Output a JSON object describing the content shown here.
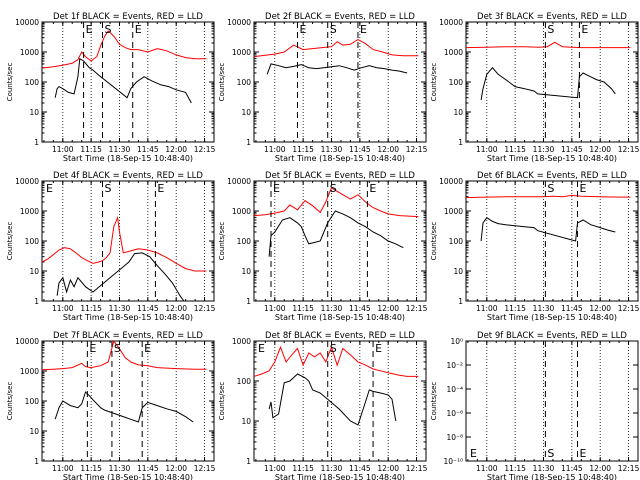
{
  "figure": {
    "x_title": "Start Time (18-Sep-15 10:48:40)",
    "y_title": "Counts/sec",
    "x_ticks": [
      "11:00",
      "11:15",
      "11:30",
      "11:45",
      "12:00",
      "12:15"
    ],
    "y_ticks_counts": [
      "1",
      "10",
      "100",
      "1000",
      "10000"
    ],
    "y_ticks_small": [
      "10⁰",
      "10⁻²",
      "10⁻⁴",
      "10⁻⁶",
      "10⁻⁸",
      "10⁻¹⁰"
    ],
    "colors": {
      "events": "#000000",
      "lld": "#ff0000",
      "axes": "#000000"
    }
  },
  "chart_data": [
    {
      "type": "line",
      "title": "Det 1f BLACK = Events, RED = LLD",
      "xlabel": "Start Time (18-Sep-15 10:48:40)",
      "ylabel": "Counts/sec",
      "ylim": [
        1,
        10000
      ],
      "yscale": "log",
      "markers": [
        {
          "label": "E",
          "x": "11:11"
        },
        {
          "label": "S",
          "x": "11:21"
        },
        {
          "label": "E",
          "x": "11:37"
        }
      ],
      "series": [
        {
          "name": "LLD",
          "color": "#ff0000",
          "x": [
            "10:49",
            "10:55",
            "11:00",
            "11:05",
            "11:08",
            "11:10",
            "11:12",
            "11:15",
            "11:18",
            "11:20",
            "11:22",
            "11:24",
            "11:27",
            "11:30",
            "11:33",
            "11:36",
            "11:40",
            "11:45",
            "11:50",
            "11:55",
            "12:00",
            "12:05",
            "12:10",
            "12:16"
          ],
          "y": [
            290,
            320,
            360,
            420,
            560,
            1000,
            700,
            500,
            700,
            1600,
            3200,
            5000,
            3400,
            1800,
            1400,
            1200,
            1200,
            1000,
            1300,
            1100,
            800,
            650,
            600,
            600
          ]
        },
        {
          "name": "Events",
          "color": "#000000",
          "x": [
            "10:56",
            "10:57",
            "10:58",
            "11:00",
            "11:03",
            "11:06",
            "11:08",
            "11:09",
            "11:11",
            "11:14",
            "11:16",
            "11:19",
            "11:34",
            "11:36",
            "11:39",
            "11:43",
            "11:47",
            "11:52",
            "11:56",
            "12:00",
            "12:05",
            "12:08"
          ],
          "y": [
            30,
            60,
            70,
            60,
            45,
            40,
            150,
            600,
            500,
            300,
            250,
            170,
            30,
            60,
            100,
            150,
            110,
            80,
            70,
            55,
            45,
            20
          ]
        }
      ]
    },
    {
      "type": "line",
      "title": "Det 2f BLACK = Events, RED = LLD",
      "xlabel": "Start Time (18-Sep-15 10:48:40)",
      "ylabel": "Counts/sec",
      "ylim": [
        1,
        10000
      ],
      "yscale": "log",
      "markers": [
        {
          "label": "E",
          "x": "11:12"
        },
        {
          "label": "S",
          "x": "11:28"
        },
        {
          "label": "E",
          "x": "11:44"
        }
      ],
      "series": [
        {
          "name": "LLD",
          "color": "#ff0000",
          "x": [
            "10:49",
            "10:55",
            "11:00",
            "11:05",
            "11:10",
            "11:15",
            "11:20",
            "11:25",
            "11:30",
            "11:33",
            "11:36",
            "11:40",
            "11:44",
            "11:48",
            "11:52",
            "11:57",
            "12:02",
            "12:08",
            "12:16"
          ],
          "y": [
            700,
            780,
            850,
            1000,
            1700,
            1200,
            1300,
            1400,
            1500,
            2200,
            1700,
            1800,
            2600,
            1900,
            1200,
            1000,
            800,
            750,
            750
          ]
        },
        {
          "name": "Events",
          "color": "#000000",
          "x": [
            "10:56",
            "10:58",
            "11:02",
            "11:06",
            "11:10",
            "11:14",
            "11:18",
            "11:22",
            "11:26",
            "11:30",
            "11:34",
            "11:38",
            "11:42",
            "11:46",
            "11:50",
            "11:54",
            "11:58",
            "12:02",
            "12:06",
            "12:10"
          ],
          "y": [
            180,
            400,
            350,
            300,
            330,
            380,
            300,
            280,
            300,
            320,
            350,
            300,
            250,
            300,
            350,
            300,
            280,
            250,
            230,
            200
          ]
        }
      ]
    },
    {
      "type": "line",
      "title": "Det 3f BLACK = Events, RED = LLD",
      "xlabel": "Start Time (18-Sep-15 10:48:40)",
      "ylabel": "Counts/sec",
      "ylim": [
        1,
        10000
      ],
      "yscale": "log",
      "markers": [
        {
          "label": "S",
          "x": "11:31"
        },
        {
          "label": "E",
          "x": "11:49"
        }
      ],
      "series": [
        {
          "name": "LLD",
          "color": "#ff0000",
          "x": [
            "10:49",
            "11:00",
            "11:10",
            "11:20",
            "11:28",
            "11:32",
            "11:36",
            "11:40",
            "11:45",
            "11:50",
            "12:00",
            "12:16"
          ],
          "y": [
            1400,
            1450,
            1500,
            1500,
            1450,
            1500,
            2100,
            1500,
            1450,
            1400,
            1400,
            1400
          ]
        },
        {
          "name": "Events",
          "color": "#000000",
          "x": [
            "10:57",
            "10:58",
            "11:00",
            "11:03",
            "11:06",
            "11:10",
            "11:15",
            "11:20",
            "11:25",
            "11:27",
            "11:48",
            "11:49",
            "11:51",
            "11:54",
            "11:58",
            "12:02",
            "12:06",
            "12:08"
          ],
          "y": [
            25,
            60,
            180,
            300,
            180,
            120,
            70,
            60,
            50,
            40,
            30,
            150,
            200,
            160,
            120,
            100,
            60,
            40
          ]
        }
      ]
    },
    {
      "type": "line",
      "title": "Det 4f BLACK = Events, RED = LLD",
      "xlabel": "Start Time (18-Sep-15 10:48:40)",
      "ylabel": "Counts/sec",
      "ylim": [
        1,
        10000
      ],
      "yscale": "log",
      "markers": [
        {
          "label": "E",
          "x": "10:49"
        },
        {
          "label": "S",
          "x": "11:21"
        },
        {
          "label": "E",
          "x": "11:49"
        }
      ],
      "series": [
        {
          "name": "LLD",
          "color": "#ff0000",
          "x": [
            "10:49",
            "10:52",
            "10:55",
            "10:58",
            "11:01",
            "11:04",
            "11:07",
            "11:10",
            "11:13",
            "11:16",
            "11:19",
            "11:21",
            "11:23",
            "11:25",
            "11:27",
            "11:29",
            "11:30",
            "11:32",
            "11:35",
            "11:40",
            "11:45",
            "11:50",
            "11:55",
            "12:00",
            "12:05",
            "12:10",
            "12:16"
          ],
          "y": [
            20,
            25,
            35,
            50,
            60,
            55,
            40,
            28,
            22,
            18,
            20,
            22,
            28,
            40,
            300,
            600,
            200,
            40,
            45,
            55,
            50,
            40,
            28,
            18,
            12,
            10,
            10
          ]
        },
        {
          "name": "Events",
          "color": "#000000",
          "x": [
            "10:57",
            "10:58",
            "11:00",
            "11:02",
            "11:04",
            "11:06",
            "11:08",
            "11:12",
            "11:16",
            "11:35",
            "11:38",
            "11:42",
            "11:46",
            "11:50",
            "11:54",
            "11:58",
            "12:02",
            "12:04"
          ],
          "y": [
            1.5,
            4,
            6,
            2,
            5,
            3,
            6,
            3,
            2,
            20,
            38,
            40,
            30,
            15,
            8,
            4,
            1.5,
            1
          ]
        }
      ]
    },
    {
      "type": "line",
      "title": "Det 5f BLACK = Events, RED = LLD",
      "xlabel": "Start Time (18-Sep-15 10:48:40)",
      "ylabel": "Counts/sec",
      "ylim": [
        1,
        10000
      ],
      "yscale": "log",
      "markers": [
        {
          "label": "E",
          "x": "10:58"
        },
        {
          "label": "S",
          "x": "11:28"
        },
        {
          "label": "E",
          "x": "11:49"
        }
      ],
      "series": [
        {
          "name": "LLD",
          "color": "#ff0000",
          "x": [
            "10:49",
            "10:55",
            "11:00",
            "11:05",
            "11:08",
            "11:12",
            "11:16",
            "11:20",
            "11:24",
            "11:27",
            "11:30",
            "11:33",
            "11:36",
            "11:40",
            "11:44",
            "11:48",
            "11:52",
            "11:56",
            "12:00",
            "12:06",
            "12:16"
          ],
          "y": [
            700,
            750,
            850,
            1000,
            1600,
            1100,
            2200,
            1500,
            900,
            2000,
            6000,
            4500,
            3500,
            2500,
            3500,
            2000,
            1300,
            1000,
            800,
            700,
            650
          ]
        },
        {
          "name": "Events",
          "color": "#000000",
          "x": [
            "10:57",
            "10:58",
            "11:00",
            "11:04",
            "11:08",
            "11:12",
            "11:14",
            "11:16",
            "11:18",
            "11:24",
            "11:28",
            "11:32",
            "11:36",
            "11:40",
            "11:44",
            "11:48",
            "11:52",
            "11:56",
            "12:00",
            "12:04",
            "12:08"
          ],
          "y": [
            30,
            150,
            200,
            500,
            600,
            400,
            300,
            150,
            80,
            100,
            400,
            1000,
            800,
            600,
            400,
            300,
            200,
            150,
            100,
            80,
            60
          ]
        }
      ]
    },
    {
      "type": "line",
      "title": "Det 6f BLACK = Events, RED = LLD",
      "xlabel": "Start Time (18-Sep-15 10:48:40)",
      "ylabel": "Counts/sec",
      "ylim": [
        1,
        10000
      ],
      "yscale": "log",
      "markers": [
        {
          "label": "S",
          "x": "11:31"
        },
        {
          "label": "E",
          "x": "11:48"
        }
      ],
      "series": [
        {
          "name": "LLD",
          "color": "#ff0000",
          "x": [
            "10:49",
            "11:00",
            "11:10",
            "11:20",
            "11:30",
            "11:35",
            "11:40",
            "11:45",
            "11:50",
            "12:00",
            "12:10",
            "12:16"
          ],
          "y": [
            2800,
            2900,
            3000,
            3000,
            3000,
            3100,
            3000,
            3300,
            3100,
            3000,
            2900,
            2900
          ]
        },
        {
          "name": "Events",
          "color": "#000000",
          "x": [
            "10:57",
            "10:58",
            "11:00",
            "11:03",
            "11:06",
            "11:10",
            "11:15",
            "11:20",
            "11:25",
            "11:27",
            "11:47",
            "11:48",
            "11:51",
            "11:55",
            "12:00",
            "12:04",
            "12:08"
          ],
          "y": [
            100,
            400,
            600,
            450,
            380,
            350,
            320,
            300,
            280,
            220,
            100,
            400,
            500,
            350,
            280,
            230,
            200
          ]
        }
      ]
    },
    {
      "type": "line",
      "title": "Det 7f BLACK = Events, RED = LLD",
      "xlabel": "Start Time (18-Sep-15 10:48:40)",
      "ylabel": "Counts/sec",
      "ylim": [
        1,
        10000
      ],
      "yscale": "log",
      "markers": [
        {
          "label": "E",
          "x": "11:13"
        },
        {
          "label": "S",
          "x": "11:26"
        },
        {
          "label": "E",
          "x": "11:42"
        }
      ],
      "series": [
        {
          "name": "LLD",
          "color": "#ff0000",
          "x": [
            "10:49",
            "10:55",
            "11:00",
            "11:05",
            "11:10",
            "11:12",
            "11:15",
            "11:20",
            "11:24",
            "11:27",
            "11:30",
            "11:33",
            "11:36",
            "11:40",
            "11:45",
            "11:50",
            "11:55",
            "12:00",
            "12:10",
            "12:16"
          ],
          "y": [
            1100,
            1150,
            1200,
            1300,
            1800,
            1400,
            1300,
            1500,
            2000,
            10000,
            5500,
            2800,
            2000,
            1600,
            1500,
            1300,
            1250,
            1200,
            1150,
            1150
          ]
        },
        {
          "name": "Events",
          "color": "#000000",
          "x": [
            "10:56",
            "10:58",
            "11:00",
            "11:04",
            "11:08",
            "11:10",
            "11:12",
            "11:14",
            "11:16",
            "11:20",
            "11:22",
            "11:40",
            "11:42",
            "11:45",
            "11:50",
            "11:55",
            "12:00",
            "12:05",
            "12:09"
          ],
          "y": [
            25,
            60,
            100,
            70,
            60,
            80,
            200,
            150,
            110,
            60,
            50,
            20,
            60,
            90,
            70,
            55,
            45,
            30,
            20
          ]
        }
      ]
    },
    {
      "type": "line",
      "title": "Det 8f BLACK = Events, RED = LLD",
      "xlabel": "Start Time (18-Sep-15 10:48:40)",
      "ylabel": "Counts/sec",
      "ylim": [
        1,
        1000
      ],
      "yscale": "log",
      "markers": [
        {
          "label": "E",
          "x": "10:49"
        },
        {
          "label": "S",
          "x": "11:28"
        },
        {
          "label": "E",
          "x": "11:52"
        }
      ],
      "series": [
        {
          "name": "LLD",
          "color": "#ff0000",
          "x": [
            "10:49",
            "10:53",
            "10:57",
            "11:00",
            "11:03",
            "11:06",
            "11:09",
            "11:12",
            "11:15",
            "11:18",
            "11:21",
            "11:24",
            "11:27",
            "11:30",
            "11:33",
            "11:36",
            "11:40",
            "11:44",
            "11:48",
            "11:52",
            "11:56",
            "12:00",
            "12:06",
            "12:10",
            "12:16"
          ],
          "y": [
            130,
            150,
            180,
            300,
            700,
            300,
            450,
            650,
            250,
            500,
            400,
            500,
            300,
            700,
            250,
            650,
            450,
            300,
            250,
            200,
            180,
            160,
            140,
            130,
            130
          ]
        },
        {
          "name": "Events",
          "color": "#000000",
          "x": [
            "10:57",
            "10:58",
            "10:59",
            "11:02",
            "11:05",
            "11:08",
            "11:12",
            "11:16",
            "11:18",
            "11:20",
            "11:24",
            "11:28",
            "11:34",
            "11:40",
            "11:44",
            "11:48",
            "11:50",
            "11:52",
            "11:56",
            "12:00",
            "12:02",
            "12:04"
          ],
          "y": [
            20,
            30,
            12,
            15,
            90,
            100,
            150,
            120,
            100,
            60,
            50,
            35,
            20,
            10,
            8,
            30,
            60,
            55,
            50,
            45,
            35,
            10
          ]
        }
      ]
    },
    {
      "type": "line",
      "title": "Det 9f BLACK = Events, RED = LLD",
      "xlabel": "Start Time (18-Sep-15 10:48:40)",
      "ylabel": "Counts/sec",
      "ylim": [
        1e-10,
        1
      ],
      "yscale": "log",
      "markers": [
        {
          "label": "E",
          "x": "10:49"
        },
        {
          "label": "S",
          "x": "11:31"
        },
        {
          "label": "E",
          "x": "11:48"
        }
      ],
      "series": []
    }
  ]
}
